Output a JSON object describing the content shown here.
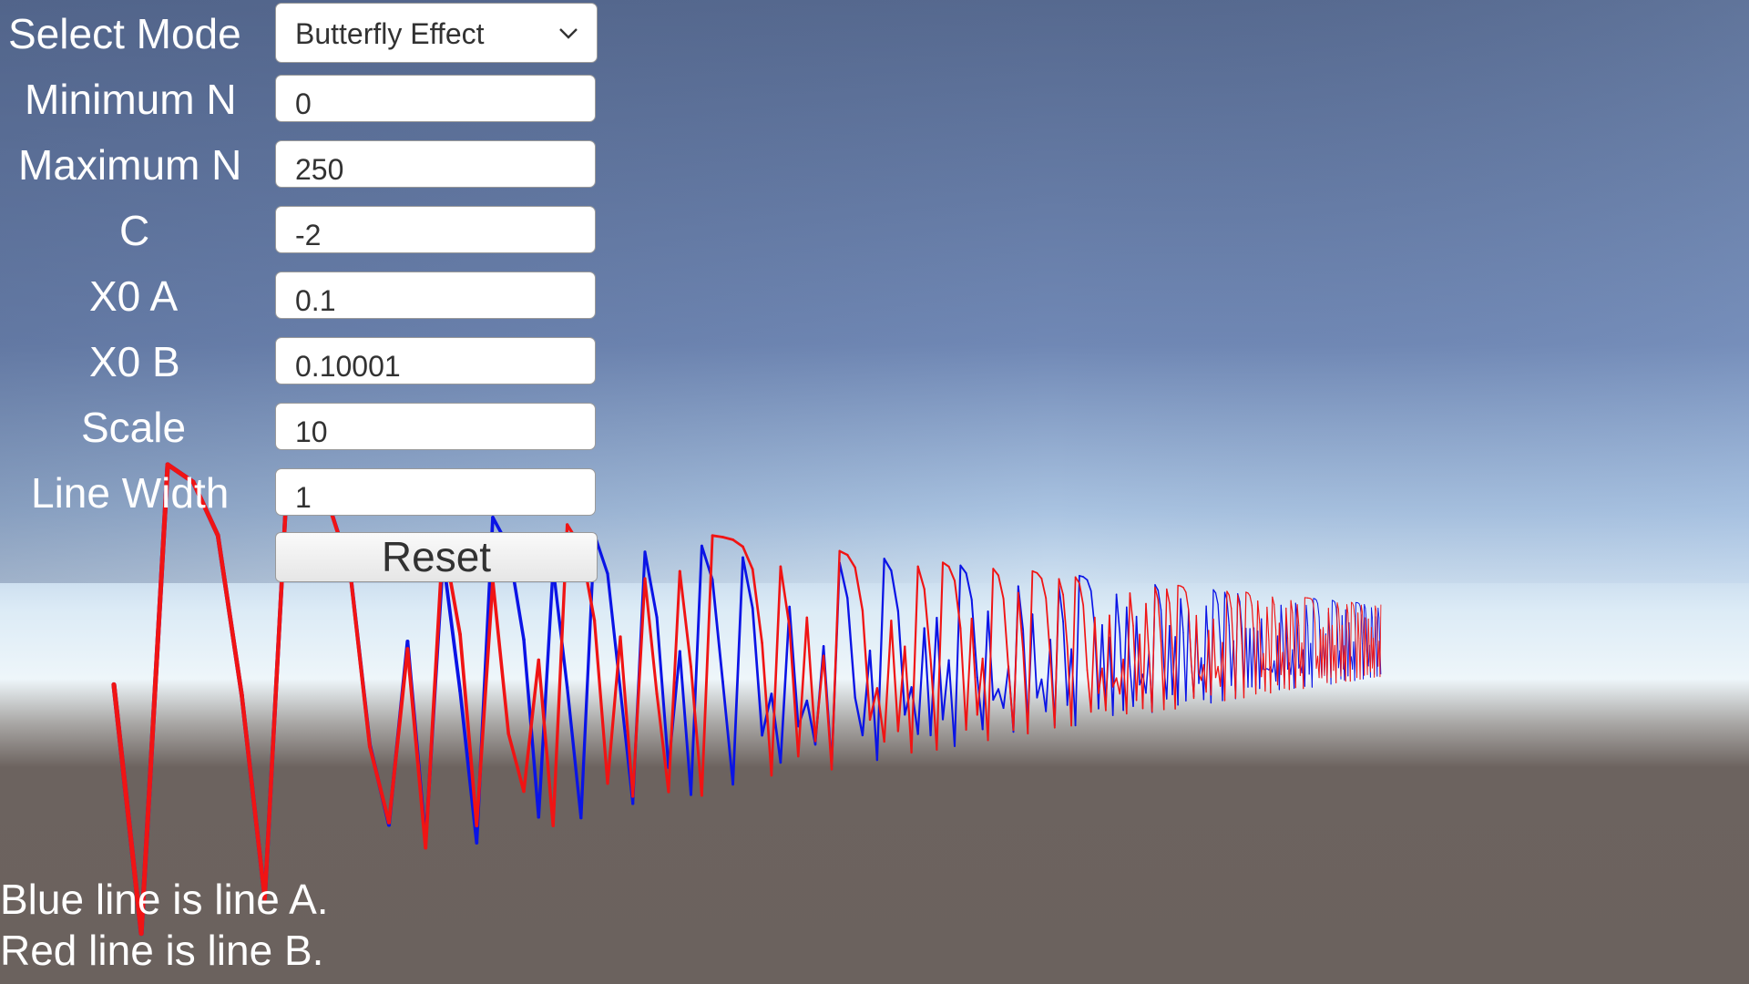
{
  "controls": {
    "select_mode_label": "Select Mode",
    "select_mode_value": "Butterfly Effect",
    "minimum_n_label": "Minimum N",
    "minimum_n_value": "0",
    "maximum_n_label": "Maximum N",
    "maximum_n_value": "250",
    "c_label": "C",
    "c_value": "-2",
    "x0a_label": "X0 A",
    "x0a_value": "0.1",
    "x0b_label": "X0 B",
    "x0b_value": "0.10001",
    "scale_label": "Scale",
    "scale_value": "10",
    "line_width_label": "Line Width",
    "line_width_value": "1",
    "reset_label": "Reset"
  },
  "legend": {
    "line_a": "Blue line is line A.",
    "line_b": "Red line is line B."
  },
  "colors": {
    "line_a": "#0a14e6",
    "line_b": "#f01414",
    "sky_top": "#56698f",
    "sky_horizon": "#e6f2fa",
    "ground": "#6c635f"
  }
}
